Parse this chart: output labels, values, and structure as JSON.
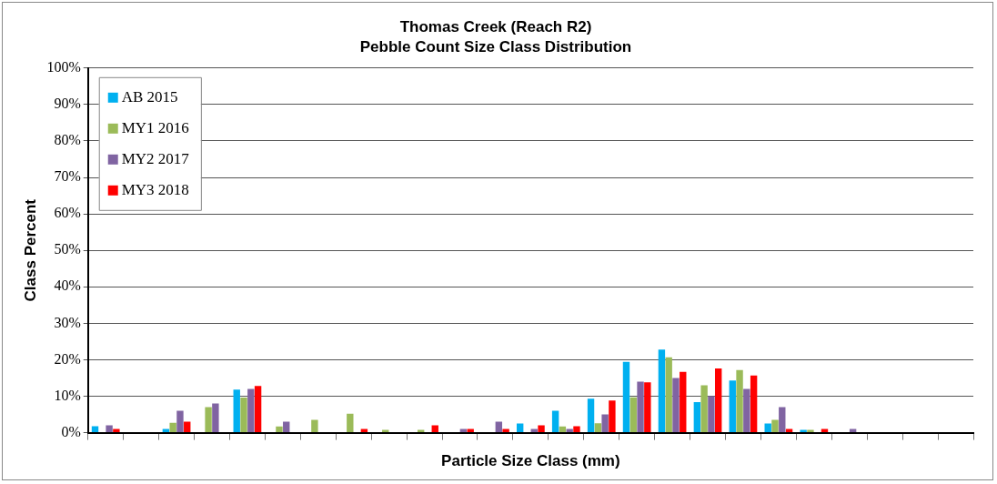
{
  "chart_data": {
    "type": "bar",
    "title": "Thomas Creek (Reach R2)",
    "subtitle": "Pebble Count Size Class Distribution",
    "xlabel": "Particle Size Class (mm)",
    "ylabel": "Class Percent",
    "categories": [
      null,
      null,
      null,
      null,
      null,
      null,
      null,
      null,
      null,
      null,
      null,
      null,
      null,
      null,
      null,
      null,
      null,
      null,
      null,
      null,
      null,
      null,
      null,
      null,
      null
    ],
    "series": [
      {
        "name": "AB 2015",
        "color": "#00b0f0",
        "values": [
          1.8,
          0,
          1,
          0,
          11.8,
          0,
          0,
          0,
          0,
          0,
          0,
          0,
          2.5,
          6,
          9.3,
          19.4,
          22.8,
          8.4,
          14.3,
          2.5,
          0.8,
          0,
          0,
          0,
          0
        ]
      },
      {
        "name": "MY1 2016",
        "color": "#9bbb59",
        "values": [
          0,
          0,
          2.7,
          7,
          9.6,
          1.7,
          3.5,
          5.2,
          0.8,
          0.8,
          0,
          0,
          0,
          1.7,
          2.6,
          9.7,
          20.7,
          13,
          17.2,
          3.5,
          0.8,
          0,
          0,
          0,
          0
        ]
      },
      {
        "name": "MY2 2017",
        "color": "#8064a2",
        "values": [
          2,
          0,
          6,
          8,
          12,
          3,
          0,
          0,
          0,
          0,
          1,
          3,
          1,
          1,
          5,
          14,
          15,
          10,
          12,
          7,
          0,
          1,
          0,
          0,
          0
        ]
      },
      {
        "name": "MY3 2018",
        "color": "#ff0000",
        "values": [
          1,
          0,
          3,
          0,
          12.8,
          0,
          0,
          1,
          0,
          2,
          1,
          1,
          2,
          1.8,
          8.8,
          13.8,
          16.7,
          17.6,
          15.7,
          1,
          1,
          0,
          0,
          0,
          0
        ]
      }
    ],
    "ylim": [
      0,
      100
    ],
    "yticks": [
      {
        "value": 0,
        "label": "0%"
      },
      {
        "value": 10,
        "label": "10%"
      },
      {
        "value": 20,
        "label": "20%"
      },
      {
        "value": 30,
        "label": "30%"
      },
      {
        "value": 40,
        "label": "40%"
      },
      {
        "value": 50,
        "label": "50%"
      },
      {
        "value": 60,
        "label": "60%"
      },
      {
        "value": 70,
        "label": "70%"
      },
      {
        "value": 80,
        "label": "80%"
      },
      {
        "value": 90,
        "label": "90%"
      },
      {
        "value": 100,
        "label": "100%"
      }
    ],
    "grid": "y",
    "legend": "top left"
  }
}
